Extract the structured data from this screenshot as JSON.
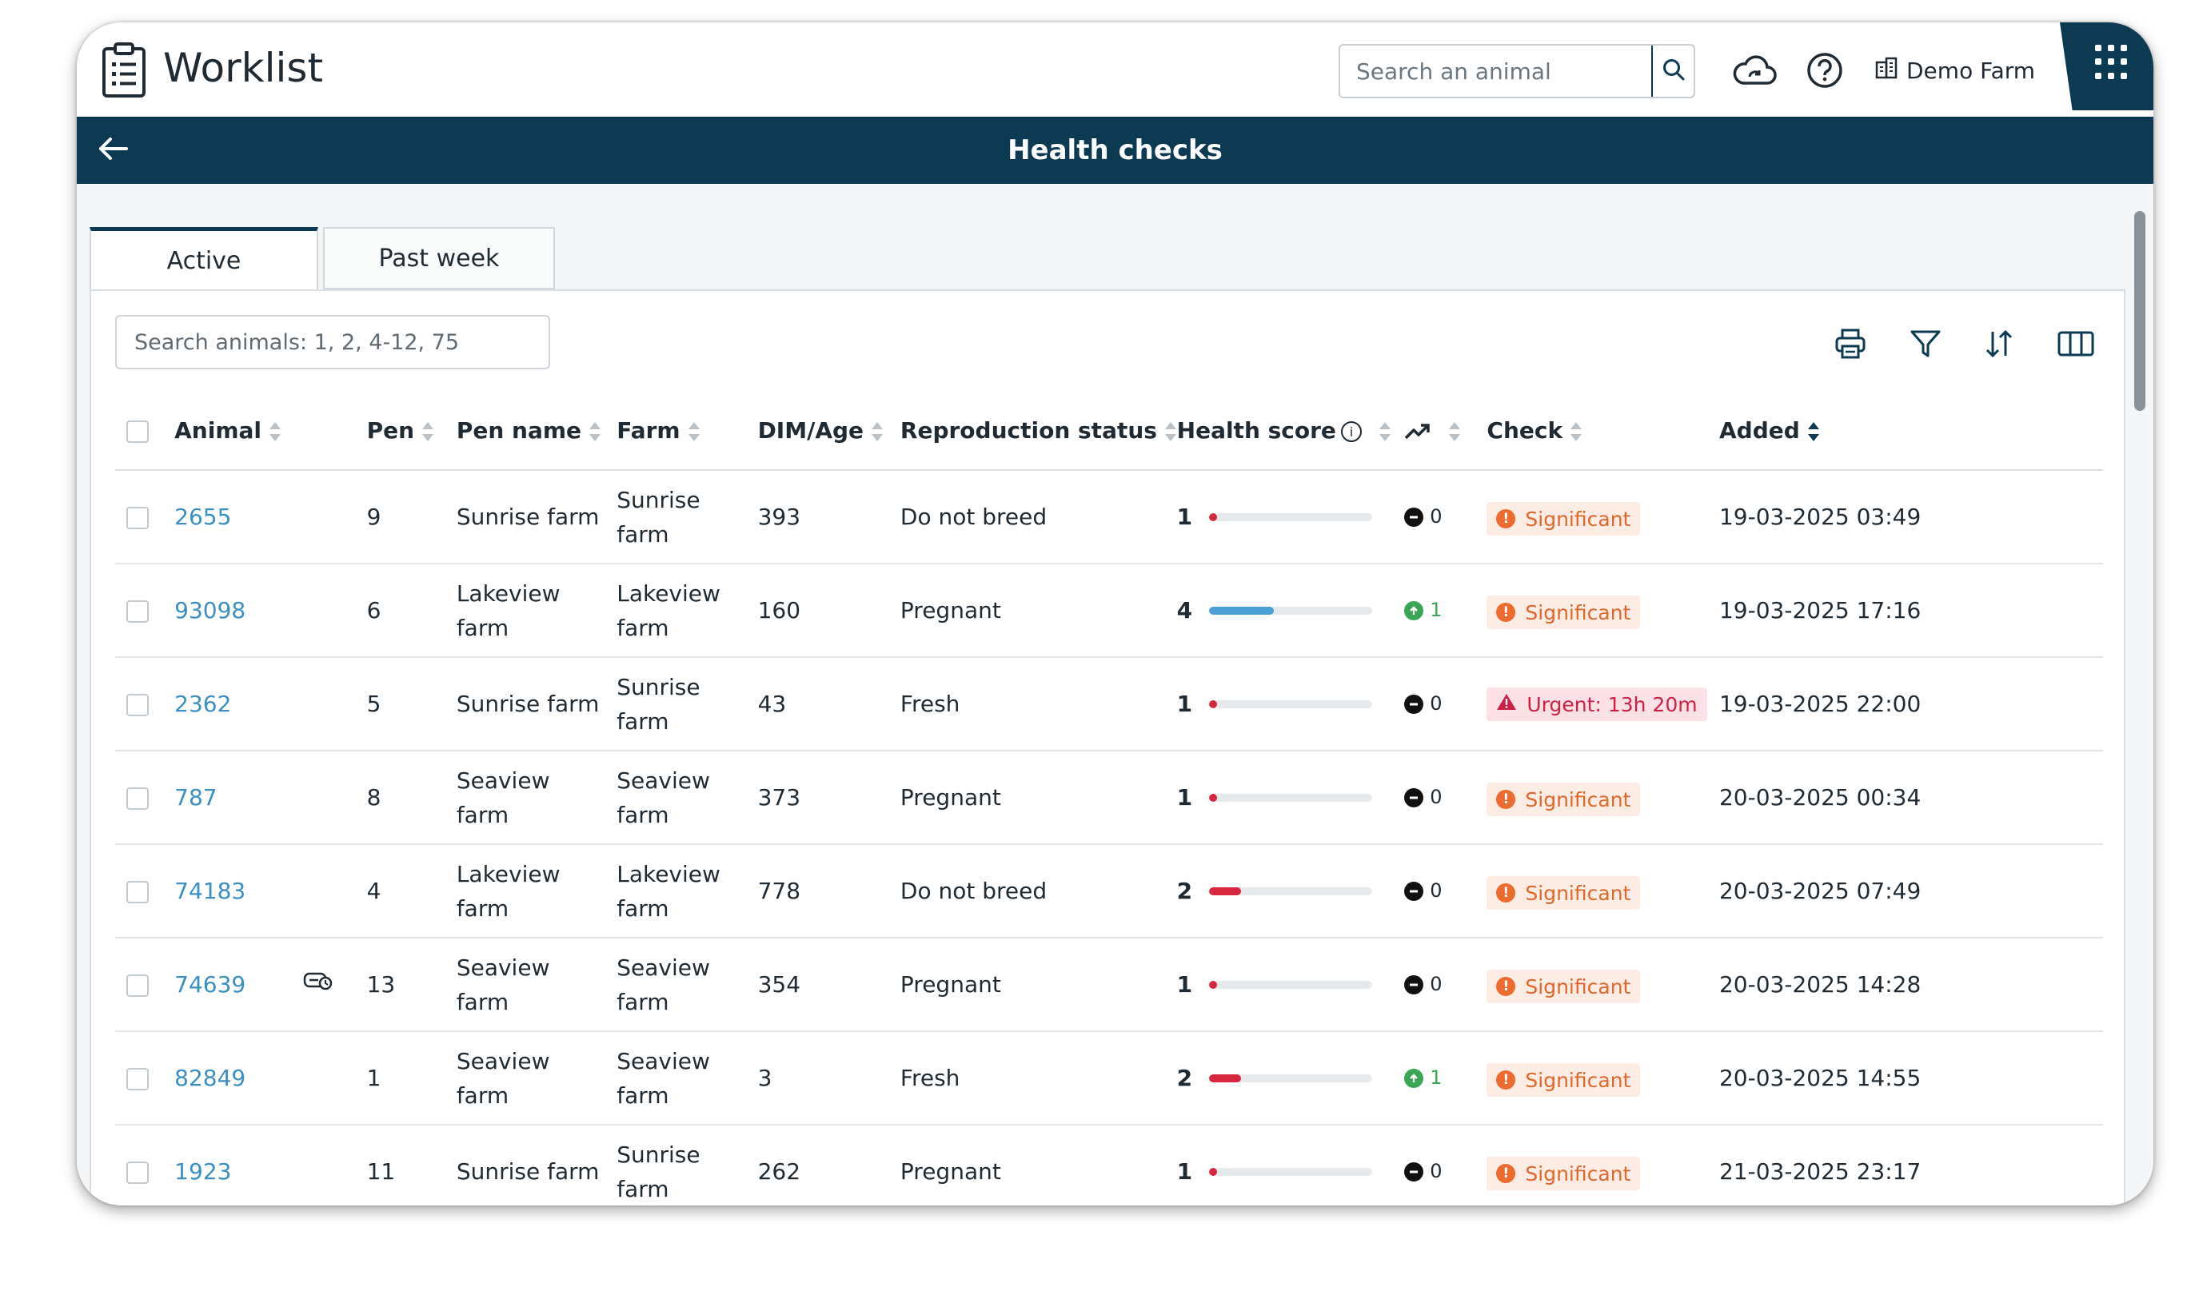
{
  "app": {
    "title": "Worklist"
  },
  "topbar": {
    "search_placeholder": "Search an animal",
    "farm_name": "Demo Farm",
    "icons": [
      "cloud-sync-icon",
      "help-icon",
      "farm-building-icon",
      "apps-grid-icon"
    ]
  },
  "section": {
    "title": "Health checks"
  },
  "tabs": [
    {
      "label": "Active",
      "active": true
    },
    {
      "label": "Past week",
      "active": false
    }
  ],
  "filter": {
    "placeholder": "Search animals: 1, 2, 4-12, 75"
  },
  "toolbar": {
    "icons": [
      "print-icon",
      "filter-icon",
      "sort-icon",
      "columns-icon"
    ]
  },
  "columns": {
    "animal": "Animal",
    "pen": "Pen",
    "pen_name": "Pen name",
    "farm": "Farm",
    "dim_age": "DIM/Age",
    "repro": "Reproduction status",
    "health": "Health score",
    "check": "Check",
    "added": "Added"
  },
  "colors": {
    "primary": "#0c3a52",
    "link": "#3b8fc2",
    "low_score": "#d7263d",
    "mid_score": "#4a9fd4",
    "significant": "#e0672a",
    "urgent": "#cf1f45",
    "trend_up": "#3aa655"
  },
  "rows": [
    {
      "animal": "2655",
      "pen": "9",
      "pen_name": "Sunrise farm",
      "farm": "Sunrise farm",
      "dim": "393",
      "repro": "Do not breed",
      "score": "1",
      "score_level": 0.05,
      "trend": "0",
      "trend_dir": "neutral",
      "check": "Significant",
      "check_type": "significant",
      "added": "19-03-2025 03:49",
      "tag_icon": false
    },
    {
      "animal": "93098",
      "pen": "6",
      "pen_name": "Lakeview farm",
      "farm": "Lakeview farm",
      "dim": "160",
      "repro": "Pregnant",
      "score": "4",
      "score_level": 0.4,
      "trend": "1",
      "trend_dir": "up",
      "check": "Significant",
      "check_type": "significant",
      "added": "19-03-2025 17:16",
      "tag_icon": false
    },
    {
      "animal": "2362",
      "pen": "5",
      "pen_name": "Sunrise farm",
      "farm": "Sunrise farm",
      "dim": "43",
      "repro": "Fresh",
      "score": "1",
      "score_level": 0.05,
      "trend": "0",
      "trend_dir": "neutral",
      "check": "Urgent: 13h 20m",
      "check_type": "urgent",
      "added": "19-03-2025 22:00",
      "tag_icon": false
    },
    {
      "animal": "787",
      "pen": "8",
      "pen_name": "Seaview farm",
      "farm": "Seaview farm",
      "dim": "373",
      "repro": "Pregnant",
      "score": "1",
      "score_level": 0.05,
      "trend": "0",
      "trend_dir": "neutral",
      "check": "Significant",
      "check_type": "significant",
      "added": "20-03-2025 00:34",
      "tag_icon": false
    },
    {
      "animal": "74183",
      "pen": "4",
      "pen_name": "Lakeview farm",
      "farm": "Lakeview farm",
      "dim": "778",
      "repro": "Do not breed",
      "score": "2",
      "score_level": 0.2,
      "trend": "0",
      "trend_dir": "neutral",
      "check": "Significant",
      "check_type": "significant",
      "added": "20-03-2025 07:49",
      "tag_icon": false
    },
    {
      "animal": "74639",
      "pen": "13",
      "pen_name": "Seaview farm",
      "farm": "Seaview farm",
      "dim": "354",
      "repro": "Pregnant",
      "score": "1",
      "score_level": 0.05,
      "trend": "0",
      "trend_dir": "neutral",
      "check": "Significant",
      "check_type": "significant",
      "added": "20-03-2025 14:28",
      "tag_icon": true
    },
    {
      "animal": "82849",
      "pen": "1",
      "pen_name": "Seaview farm",
      "farm": "Seaview farm",
      "dim": "3",
      "repro": "Fresh",
      "score": "2",
      "score_level": 0.2,
      "trend": "1",
      "trend_dir": "up",
      "check": "Significant",
      "check_type": "significant",
      "added": "20-03-2025 14:55",
      "tag_icon": false
    },
    {
      "animal": "1923",
      "pen": "11",
      "pen_name": "Sunrise farm",
      "farm": "Sunrise farm",
      "dim": "262",
      "repro": "Pregnant",
      "score": "1",
      "score_level": 0.05,
      "trend": "0",
      "trend_dir": "neutral",
      "check": "Significant",
      "check_type": "significant",
      "added": "21-03-2025 23:17",
      "tag_icon": false
    }
  ]
}
